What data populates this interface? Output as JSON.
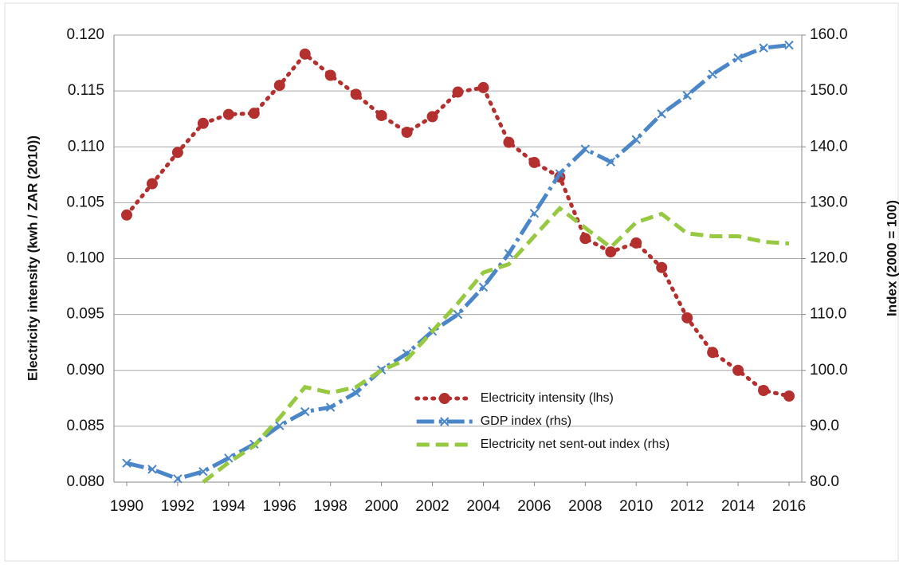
{
  "chart_data": {
    "type": "line",
    "y_axis_label": "Electricity intensity (kwh / ZAR (2010))",
    "y2_axis_label": "Index (2000 = 100)",
    "x": [
      1990,
      1991,
      1992,
      1993,
      1994,
      1995,
      1996,
      1997,
      1998,
      1999,
      2000,
      2001,
      2002,
      2003,
      2004,
      2005,
      2006,
      2007,
      2008,
      2009,
      2010,
      2011,
      2012,
      2013,
      2014,
      2015,
      2016
    ],
    "xlim": [
      1989.5,
      2016.5
    ],
    "xticks": [
      1990,
      1992,
      1994,
      1996,
      1998,
      2000,
      2002,
      2004,
      2006,
      2008,
      2010,
      2012,
      2014,
      2016
    ],
    "ylim": [
      0.08,
      0.12
    ],
    "yticks": [
      {
        "value": 0.08,
        "label": "0.080"
      },
      {
        "value": 0.085,
        "label": "0.085"
      },
      {
        "value": 0.09,
        "label": "0.090"
      },
      {
        "value": 0.095,
        "label": "0.095"
      },
      {
        "value": 0.1,
        "label": "0.100"
      },
      {
        "value": 0.105,
        "label": "0.105"
      },
      {
        "value": 0.11,
        "label": "0.110"
      },
      {
        "value": 0.115,
        "label": "0.115"
      },
      {
        "value": 0.12,
        "label": "0.120"
      }
    ],
    "y2lim": [
      80,
      160
    ],
    "y2ticks": [
      {
        "value": 80,
        "label": "80.0"
      },
      {
        "value": 90,
        "label": "90.0"
      },
      {
        "value": 100,
        "label": "100.0"
      },
      {
        "value": 110,
        "label": "110.0"
      },
      {
        "value": 120,
        "label": "120.0"
      },
      {
        "value": 130,
        "label": "130.0"
      },
      {
        "value": 140,
        "label": "140.0"
      },
      {
        "value": 150,
        "label": "150.0"
      },
      {
        "value": 160,
        "label": "160.0"
      }
    ],
    "grid": true,
    "legend": "lower right",
    "series": [
      {
        "name": "Electricity intensity (lhs)",
        "color": "#b3302e",
        "dash": "dot",
        "marker": "circle",
        "values": [
          0.1039,
          0.1067,
          0.1095,
          0.1121,
          0.1129,
          0.113,
          0.1155,
          0.1183,
          0.1164,
          0.1147,
          0.1128,
          0.1113,
          0.1127,
          0.1149,
          0.1153,
          0.1104,
          0.1086,
          0.1073,
          0.1018,
          0.1006,
          0.1014,
          0.0992,
          0.0947,
          0.0916,
          0.09,
          0.0882,
          0.0877
        ]
      },
      {
        "name": "GDP index (rhs)",
        "color": "#4a86c8",
        "dash": "dashdot",
        "marker": "x",
        "axis": "y2",
        "values": [
          83.4,
          82.3,
          80.6,
          81.9,
          84.3,
          86.8,
          90.1,
          92.6,
          93.4,
          96.0,
          100.1,
          103.0,
          107.0,
          110.0,
          114.9,
          120.9,
          128.1,
          135.2,
          139.6,
          137.3,
          141.3,
          145.9,
          149.2,
          153.0,
          155.9,
          157.7,
          158.2
        ]
      },
      {
        "name": "Electricity net sent-out index (rhs)",
        "color": "#96c840",
        "dash": "dash",
        "marker": "none",
        "axis": "y2",
        "values": [
          null,
          null,
          null,
          80.0,
          83.5,
          86.5,
          91.5,
          97.0,
          96.0,
          97.0,
          100.0,
          102.0,
          107.0,
          112.0,
          117.5,
          119.0,
          124.0,
          129.0,
          125.5,
          122.0,
          126.5,
          128.0,
          124.5,
          124.0,
          124.0,
          123.0,
          122.7
        ]
      }
    ]
  }
}
